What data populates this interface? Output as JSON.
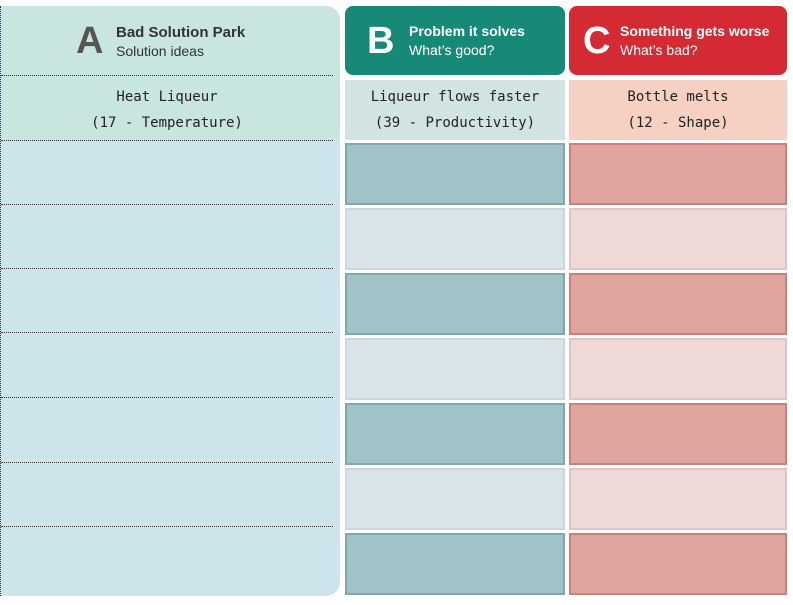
{
  "columns": [
    {
      "letter": "A",
      "title": "Bad Solution Park",
      "subtitle": "Solution ideas",
      "entry": [
        "Heat Liqueur",
        "(17 - Temperature)"
      ]
    },
    {
      "letter": "B",
      "title": "Problem it solves",
      "subtitle": "What’s good?",
      "entry": [
        "Liqueur flows faster",
        "(39 - Productivity)"
      ]
    },
    {
      "letter": "C",
      "title": "Something gets worse",
      "subtitle": "What’s bad?",
      "entry": [
        "Bottle melts",
        "(12 - Shape)"
      ]
    }
  ]
}
